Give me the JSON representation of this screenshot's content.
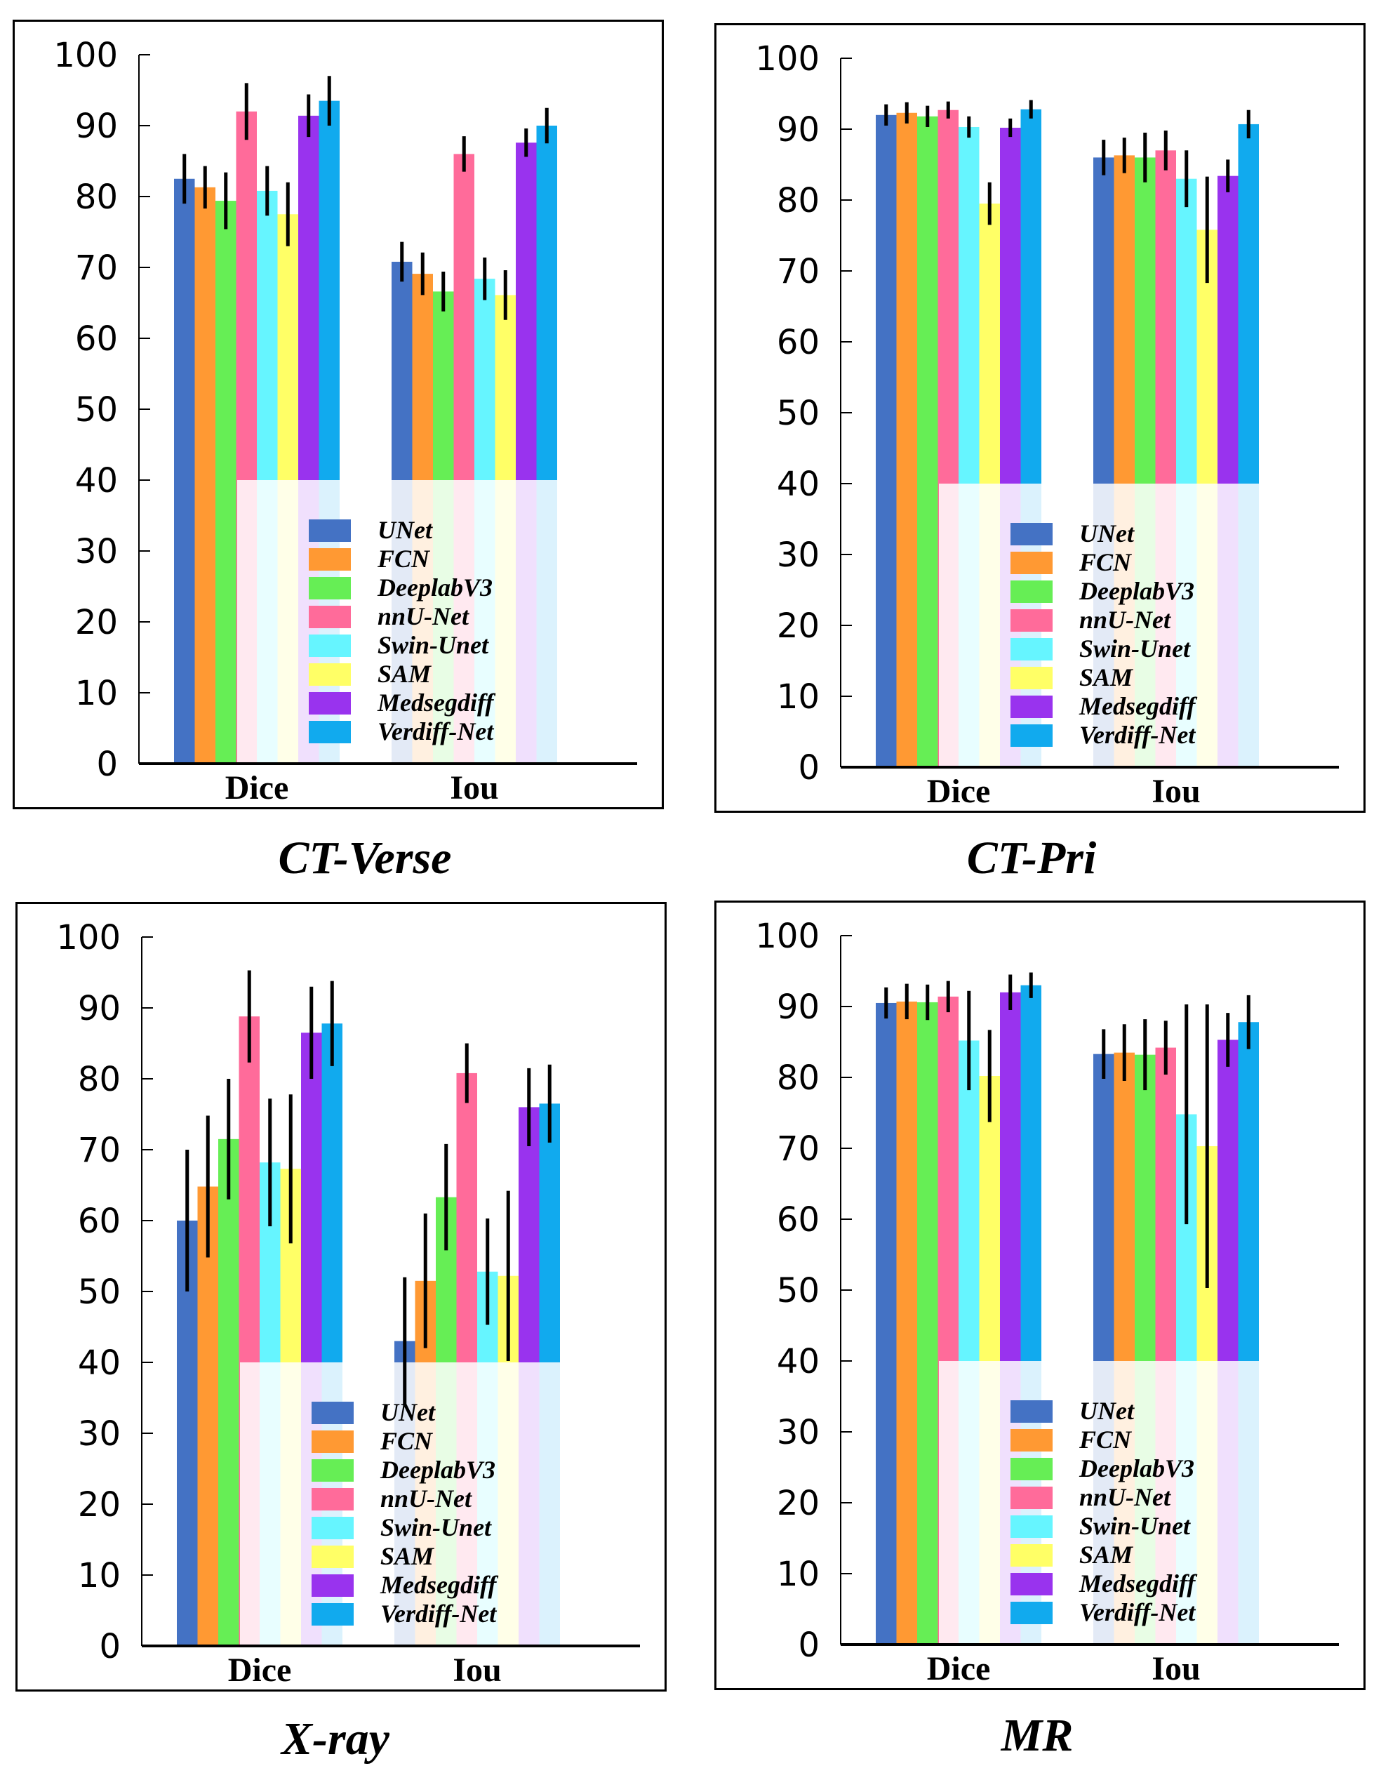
{
  "legend": {
    "labels": [
      "UNet",
      "FCN",
      "DeeplabV3",
      "nnU-Net",
      "Swin-Unet",
      "SAM",
      "Medsegdiff",
      "Verdiff-Net"
    ],
    "colors": [
      "#4472C4",
      "#FF9933",
      "#66EE55",
      "#FF6B9A",
      "#66F5FF",
      "#FFFF66",
      "#9933EE",
      "#11AAEE"
    ]
  },
  "chart_data": [
    {
      "type": "bar",
      "title": "CT-Verse",
      "categories": [
        "Dice",
        "Iou"
      ],
      "ylim": [
        0,
        100
      ],
      "yticks": [
        0,
        10,
        20,
        30,
        40,
        50,
        60,
        70,
        80,
        90,
        100
      ],
      "series": [
        {
          "name": "UNet",
          "values": [
            82.5,
            70.8
          ],
          "errors": [
            3.5,
            2.8
          ]
        },
        {
          "name": "FCN",
          "values": [
            81.3,
            69.1
          ],
          "errors": [
            3.0,
            3.0
          ]
        },
        {
          "name": "DeeplabV3",
          "values": [
            79.4,
            66.6
          ],
          "errors": [
            4.0,
            2.8
          ]
        },
        {
          "name": "nnU-Net",
          "values": [
            92.0,
            86.0
          ],
          "errors": [
            4.0,
            2.5
          ]
        },
        {
          "name": "Swin-Unet",
          "values": [
            80.8,
            68.4
          ],
          "errors": [
            3.5,
            3.0
          ]
        },
        {
          "name": "SAM",
          "values": [
            77.5,
            66.1
          ],
          "errors": [
            4.5,
            3.5
          ]
        },
        {
          "name": "Medsegdiff",
          "values": [
            91.4,
            87.6
          ],
          "errors": [
            3.0,
            2.0
          ]
        },
        {
          "name": "Verdiff-Net",
          "values": [
            93.5,
            90.0
          ],
          "errors": [
            3.5,
            2.5
          ]
        }
      ]
    },
    {
      "type": "bar",
      "title": "CT-Pri",
      "categories": [
        "Dice",
        "Iou"
      ],
      "ylim": [
        0,
        100
      ],
      "yticks": [
        0,
        10,
        20,
        30,
        40,
        50,
        60,
        70,
        80,
        90,
        100
      ],
      "series": [
        {
          "name": "UNet",
          "values": [
            92.0,
            86.0
          ],
          "errors": [
            1.5,
            2.5
          ]
        },
        {
          "name": "FCN",
          "values": [
            92.3,
            86.3
          ],
          "errors": [
            1.5,
            2.5
          ]
        },
        {
          "name": "DeeplabV3",
          "values": [
            91.8,
            86.0
          ],
          "errors": [
            1.5,
            3.5
          ]
        },
        {
          "name": "nnU-Net",
          "values": [
            92.7,
            87.0
          ],
          "errors": [
            1.2,
            2.8
          ]
        },
        {
          "name": "Swin-Unet",
          "values": [
            90.3,
            83.0
          ],
          "errors": [
            1.5,
            4.0
          ]
        },
        {
          "name": "SAM",
          "values": [
            79.5,
            75.8
          ],
          "errors": [
            3.0,
            7.5
          ]
        },
        {
          "name": "Medsegdiff",
          "values": [
            90.2,
            83.4
          ],
          "errors": [
            1.3,
            2.3
          ]
        },
        {
          "name": "Verdiff-Net",
          "values": [
            92.8,
            90.7
          ],
          "errors": [
            1.3,
            2.0
          ]
        }
      ]
    },
    {
      "type": "bar",
      "title": "X-ray",
      "categories": [
        "Dice",
        "Iou"
      ],
      "ylim": [
        0,
        100
      ],
      "yticks": [
        0,
        10,
        20,
        30,
        40,
        50,
        60,
        70,
        80,
        90,
        100
      ],
      "series": [
        {
          "name": "UNet",
          "values": [
            60.0,
            43.0
          ],
          "errors": [
            10.0,
            9.0
          ]
        },
        {
          "name": "FCN",
          "values": [
            64.8,
            51.5
          ],
          "errors": [
            10.0,
            9.5
          ]
        },
        {
          "name": "DeeplabV3",
          "values": [
            71.5,
            63.3
          ],
          "errors": [
            8.5,
            7.5
          ]
        },
        {
          "name": "nnU-Net",
          "values": [
            88.8,
            80.8
          ],
          "errors": [
            6.5,
            4.2
          ]
        },
        {
          "name": "Swin-Unet",
          "values": [
            68.2,
            52.8
          ],
          "errors": [
            9.0,
            7.5
          ]
        },
        {
          "name": "SAM",
          "values": [
            67.3,
            52.2
          ],
          "errors": [
            10.5,
            12.0
          ]
        },
        {
          "name": "Medsegdiff",
          "values": [
            86.5,
            76.0
          ],
          "errors": [
            6.5,
            5.5
          ]
        },
        {
          "name": "Verdiff-Net",
          "values": [
            87.8,
            76.5
          ],
          "errors": [
            6.0,
            5.5
          ]
        }
      ]
    },
    {
      "type": "bar",
      "title": "MR",
      "categories": [
        "Dice",
        "Iou"
      ],
      "ylim": [
        0,
        100
      ],
      "yticks": [
        0,
        10,
        20,
        30,
        40,
        50,
        60,
        70,
        80,
        90,
        100
      ],
      "series": [
        {
          "name": "UNet",
          "values": [
            90.5,
            83.3
          ],
          "errors": [
            2.2,
            3.5
          ]
        },
        {
          "name": "FCN",
          "values": [
            90.7,
            83.5
          ],
          "errors": [
            2.5,
            4.0
          ]
        },
        {
          "name": "DeeplabV3",
          "values": [
            90.6,
            83.2
          ],
          "errors": [
            2.5,
            5.0
          ]
        },
        {
          "name": "nnU-Net",
          "values": [
            91.4,
            84.2
          ],
          "errors": [
            2.2,
            3.8
          ]
        },
        {
          "name": "Swin-Unet",
          "values": [
            85.2,
            74.8
          ],
          "errors": [
            7.0,
            15.5
          ]
        },
        {
          "name": "SAM",
          "values": [
            80.2,
            70.3
          ],
          "errors": [
            6.5,
            20.0
          ]
        },
        {
          "name": "Medsegdiff",
          "values": [
            92.0,
            85.3
          ],
          "errors": [
            2.5,
            3.8
          ]
        },
        {
          "name": "Verdiff-Net",
          "values": [
            93.0,
            87.8
          ],
          "errors": [
            1.8,
            3.8
          ]
        }
      ]
    }
  ]
}
